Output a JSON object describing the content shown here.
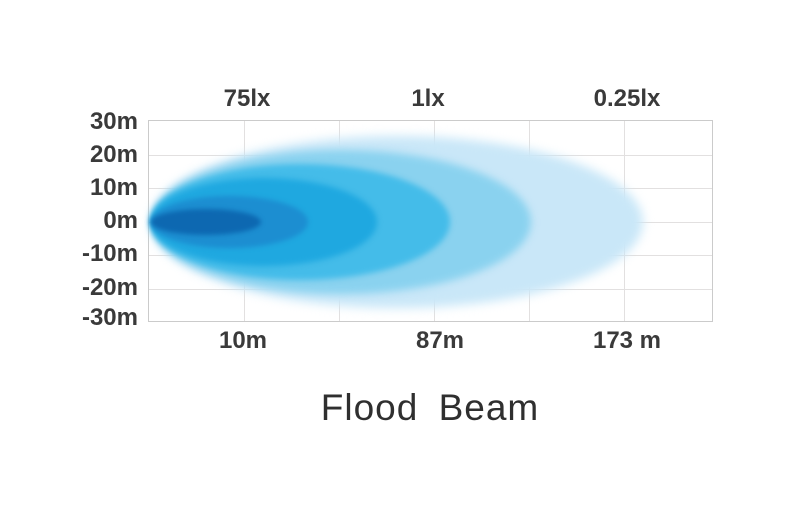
{
  "chart_data": {
    "type": "area",
    "title": "Flood Beam",
    "grid": "on",
    "legend": "none",
    "top_axis": {
      "unit": "lx",
      "tick_labels": [
        "75lx",
        "1lx",
        "0.25lx"
      ],
      "tick_values_lux": [
        75,
        1,
        0.25
      ]
    },
    "bottom_axis": {
      "unit": "m",
      "tick_labels": [
        "10m",
        "87m",
        "173 m"
      ],
      "tick_values_m": [
        10,
        87,
        173
      ]
    },
    "left_axis": {
      "unit": "m",
      "tick_labels": [
        "30m",
        "20m",
        "10m",
        "0m",
        "-10m",
        "-20m",
        "-30m"
      ],
      "tick_values_m": [
        30,
        20,
        10,
        0,
        -10,
        -20,
        -30
      ],
      "range_m": [
        -30,
        30
      ]
    },
    "lux_at_distance": [
      {
        "lux": 75,
        "distance_m": 10
      },
      {
        "lux": 1,
        "distance_m": 87
      },
      {
        "lux": 0.25,
        "distance_m": 173
      }
    ],
    "beam_center_y_m": 0,
    "contours": [
      {
        "name": "outermost-faintest",
        "color": "#c9e7f8",
        "approx_reach_m": 175,
        "approx_half_spread_m": 26
      },
      {
        "name": "level-5",
        "color": "#8ad2ef",
        "approx_reach_m": 130,
        "approx_half_spread_m": 21
      },
      {
        "name": "level-4",
        "color": "#44bce9",
        "approx_reach_m": 93,
        "approx_half_spread_m": 17
      },
      {
        "name": "level-3",
        "color": "#1fa8e0",
        "approx_reach_m": 63,
        "approx_half_spread_m": 13
      },
      {
        "name": "level-2",
        "color": "#1c8ed1",
        "approx_reach_m": 35,
        "approx_half_spread_m": 8
      },
      {
        "name": "hotspot-brightest",
        "color": "#0d68b1",
        "approx_reach_m": 16,
        "approx_half_spread_m": 4
      }
    ]
  }
}
